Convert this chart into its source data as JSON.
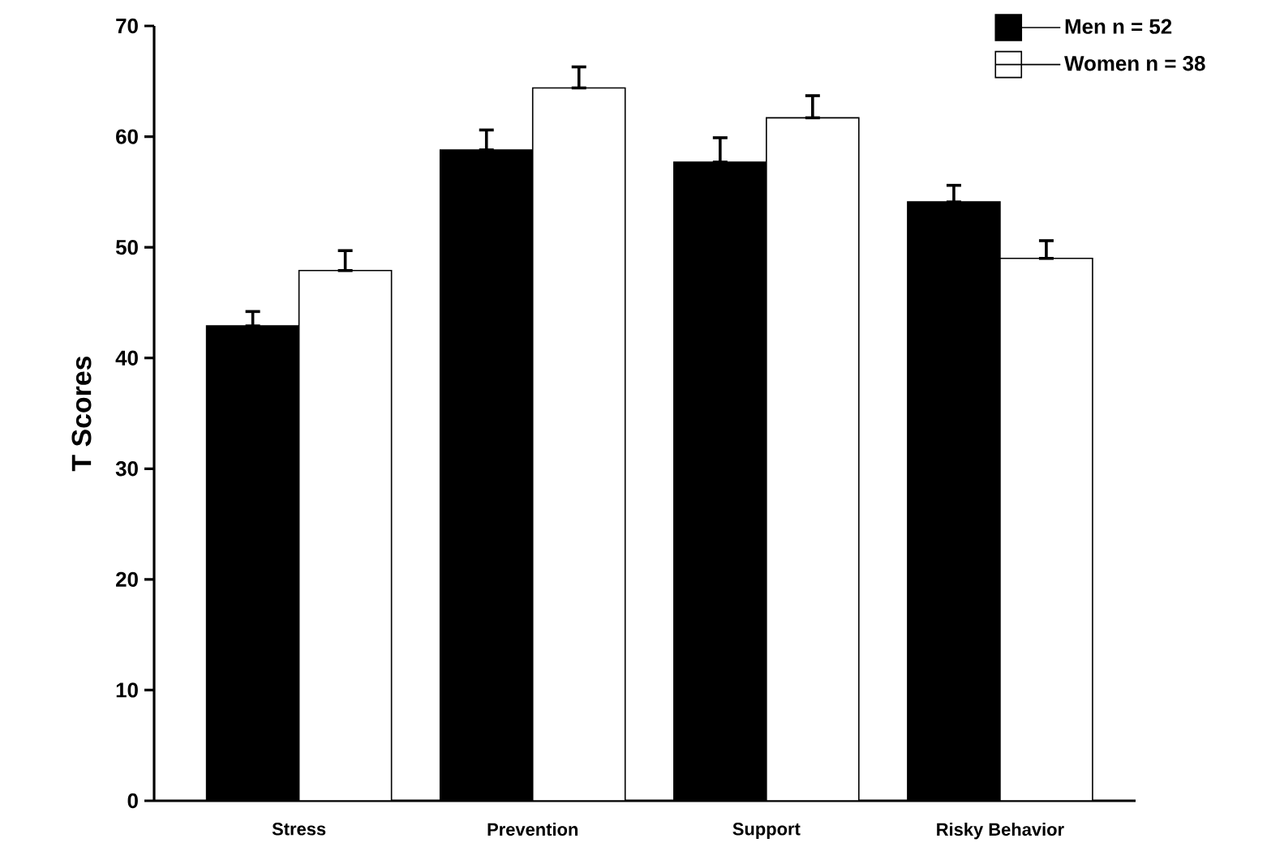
{
  "chart_data": {
    "type": "bar",
    "ylabel": "T Scores",
    "categories": [
      "Stress",
      "Prevention",
      "Support",
      "Risky Behavior"
    ],
    "series": [
      {
        "name": "Men  n = 52",
        "color": "#000000",
        "values": [
          42.9,
          58.8,
          57.7,
          54.1
        ],
        "errors": [
          [
            42.9,
            44.2
          ],
          [
            58.8,
            60.6
          ],
          [
            57.7,
            59.9
          ],
          [
            54.1,
            55.6
          ]
        ]
      },
      {
        "name": "Women  n = 38",
        "color": "#ffffff",
        "values": [
          47.9,
          64.4,
          61.7,
          49.0
        ],
        "errors": [
          [
            47.9,
            49.7
          ],
          [
            64.4,
            66.3
          ],
          [
            61.7,
            63.7
          ],
          [
            49.0,
            50.6
          ]
        ]
      }
    ],
    "ylim": [
      0,
      70
    ],
    "yticks": [
      0,
      10,
      20,
      30,
      40,
      50,
      60,
      70
    ],
    "legend": "top right",
    "grid": false
  }
}
